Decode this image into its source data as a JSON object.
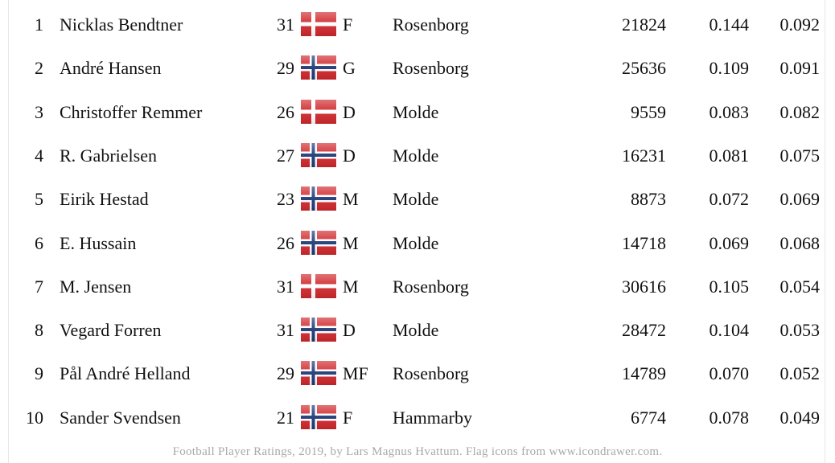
{
  "table": {
    "rows": [
      [
        "1",
        "Nicklas Bendtner",
        "31",
        "F",
        "Rosenborg",
        "21824",
        "0.144",
        "0.092"
      ],
      [
        "2",
        "André Hansen",
        "29",
        "G",
        "Rosenborg",
        "25636",
        "0.109",
        "0.091"
      ],
      [
        "3",
        "Christoffer Remmer",
        "26",
        "D",
        "Molde",
        "9559",
        "0.083",
        "0.082"
      ],
      [
        "4",
        "R. Gabrielsen",
        "27",
        "D",
        "Molde",
        "16231",
        "0.081",
        "0.075"
      ],
      [
        "5",
        "Eirik Hestad",
        "23",
        "M",
        "Molde",
        "8873",
        "0.072",
        "0.069"
      ],
      [
        "6",
        "E. Hussain",
        "26",
        "M",
        "Molde",
        "14718",
        "0.069",
        "0.068"
      ],
      [
        "7",
        "M. Jensen",
        "31",
        "M",
        "Rosenborg",
        "30616",
        "0.105",
        "0.054"
      ],
      [
        "8",
        "Vegard Forren",
        "31",
        "D",
        "Molde",
        "28472",
        "0.104",
        "0.053"
      ],
      [
        "9",
        "Pål André Helland",
        "29",
        "MF",
        "Rosenborg",
        "14789",
        "0.070",
        "0.052"
      ],
      [
        "10",
        "Sander Svendsen",
        "21",
        "F",
        "Hammarby",
        "6774",
        "0.078",
        "0.049"
      ]
    ]
  },
  "footer": "Football Player Ratings, 2019, by Lars Magnus Hvattum. Flag icons from www.icondrawer.com."
}
